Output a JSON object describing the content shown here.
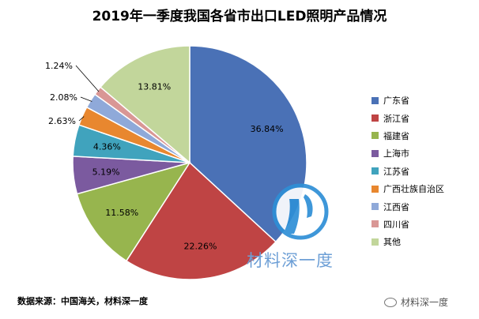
{
  "chart_data": {
    "type": "pie",
    "title": "2019年一季度我国各省市出口LED照明产品情况",
    "legend_position": "right",
    "slices": [
      {
        "name": "广东省",
        "value": 36.84,
        "label": "36.84%",
        "color": "#4a71b6"
      },
      {
        "name": "浙江省",
        "value": 22.26,
        "label": "22.26%",
        "color": "#bf4444"
      },
      {
        "name": "福建省",
        "value": 11.58,
        "label": "11.58%",
        "color": "#97b54e"
      },
      {
        "name": "上海市",
        "value": 5.19,
        "label": "5.19%",
        "color": "#7b5a9f"
      },
      {
        "name": "江苏省",
        "value": 4.36,
        "label": "4.36%",
        "color": "#40a3bd"
      },
      {
        "name": "广西壮族自治区",
        "value": 2.63,
        "label": "2.63%",
        "color": "#e8872f"
      },
      {
        "name": "江西省",
        "value": 2.08,
        "label": "2.08%",
        "color": "#8fa9d9"
      },
      {
        "name": "四川省",
        "value": 1.24,
        "label": "1.24%",
        "color": "#d99795"
      },
      {
        "name": "其他",
        "value": 13.81,
        "label": "13.81%",
        "color": "#c2d69b"
      }
    ]
  },
  "footer": {
    "source": "数据来源：中国海关，材料深一度",
    "watermark": "材料深一度",
    "wechat": "材料深一度"
  }
}
